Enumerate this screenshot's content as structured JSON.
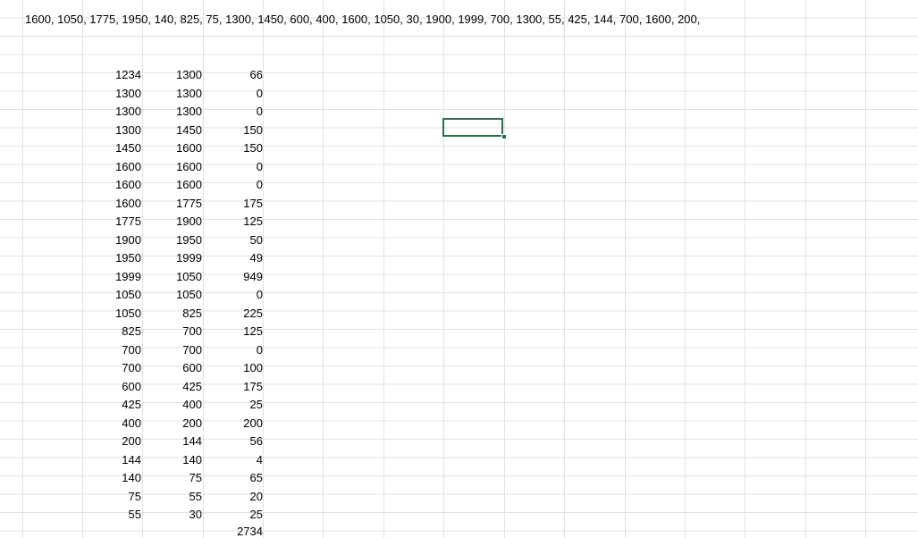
{
  "header_text": "1600, 1050, 1775, 1950, 140, 825, 75, 1300, 1450, 600, 400, 1600, 1050, 30, 1900, 1999, 700, 1300, 55, 425, 144, 700, 1600, 200,",
  "rows": [
    [
      "1234",
      "1300",
      "66"
    ],
    [
      "1300",
      "1300",
      "0"
    ],
    [
      "1300",
      "1300",
      "0"
    ],
    [
      "1300",
      "1450",
      "150"
    ],
    [
      "1450",
      "1600",
      "150"
    ],
    [
      "1600",
      "1600",
      "0"
    ],
    [
      "1600",
      "1600",
      "0"
    ],
    [
      "1600",
      "1775",
      "175"
    ],
    [
      "1775",
      "1900",
      "125"
    ],
    [
      "1900",
      "1950",
      "50"
    ],
    [
      "1950",
      "1999",
      "49"
    ],
    [
      "1999",
      "1050",
      "949"
    ],
    [
      "1050",
      "1050",
      "0"
    ],
    [
      "1050",
      "825",
      "225"
    ],
    [
      "825",
      "700",
      "125"
    ],
    [
      "700",
      "700",
      "0"
    ],
    [
      "700",
      "600",
      "100"
    ],
    [
      "600",
      "425",
      "175"
    ],
    [
      "425",
      "400",
      "25"
    ],
    [
      "400",
      "200",
      "200"
    ],
    [
      "200",
      "144",
      "56"
    ],
    [
      "144",
      "140",
      "4"
    ],
    [
      "140",
      "75",
      "65"
    ],
    [
      "75",
      "55",
      "20"
    ],
    [
      "55",
      "30",
      "25"
    ]
  ],
  "total": "2734",
  "accent_color": "#217346"
}
